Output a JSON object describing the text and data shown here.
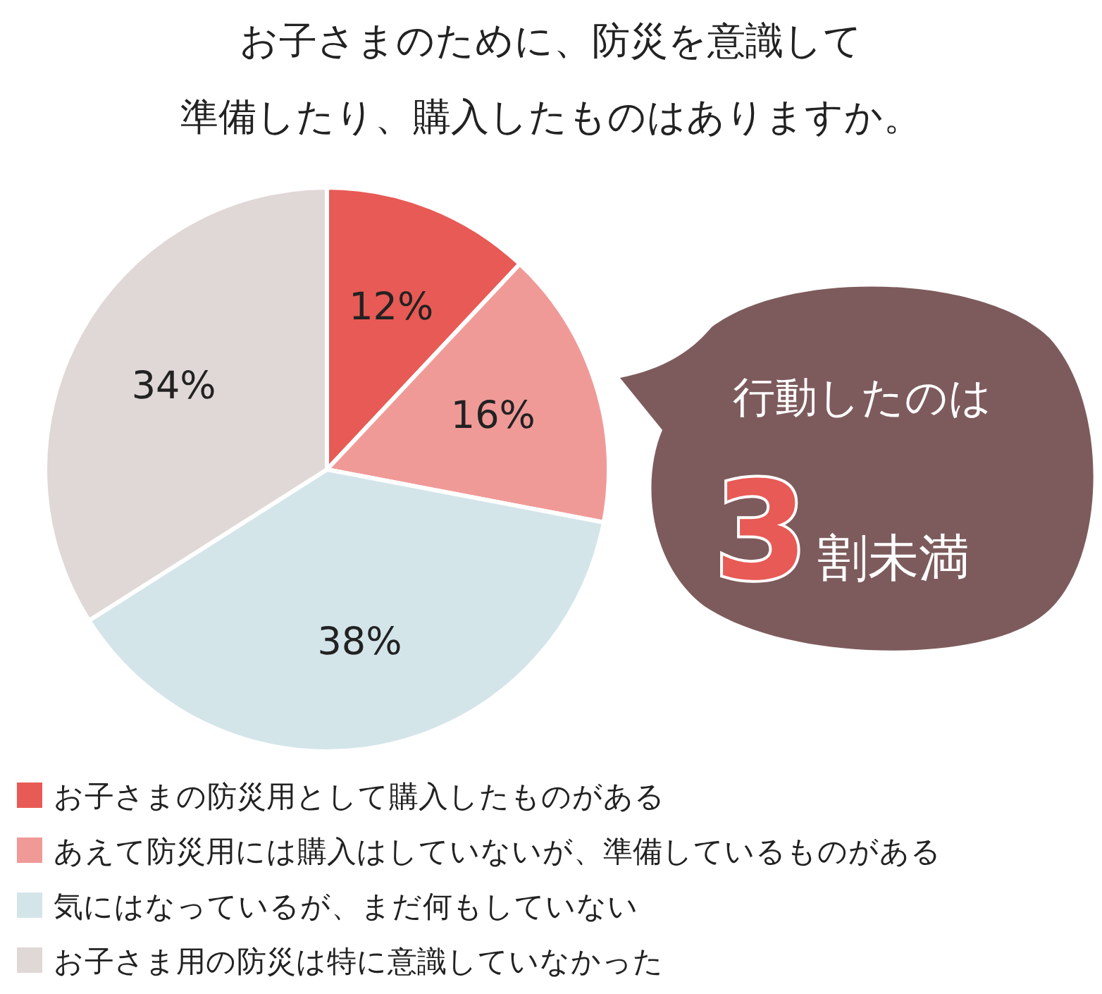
{
  "chart_data": {
    "type": "pie",
    "title": "お子さまのために、防災を意識して",
    "subtitle": "準備したり、購入したものはありますか。",
    "categories": [
      "お子さまの防災用として購入したものがある",
      "あえて防災用には購入はしていないが、準備しているものがある",
      "気にはなっているが、まだ何もしていない",
      "お子さま用の防災は特に意識していなかった"
    ],
    "values": [
      12,
      16,
      38,
      34
    ],
    "colors": [
      "#e85a55",
      "#f09a98",
      "#d4e5ea",
      "#e0d8d6"
    ],
    "value_labels": [
      "12%",
      "16%",
      "38%",
      "34%"
    ],
    "annotations": [
      "行動したのは",
      "3",
      "割未満"
    ],
    "legend": "bottom"
  }
}
